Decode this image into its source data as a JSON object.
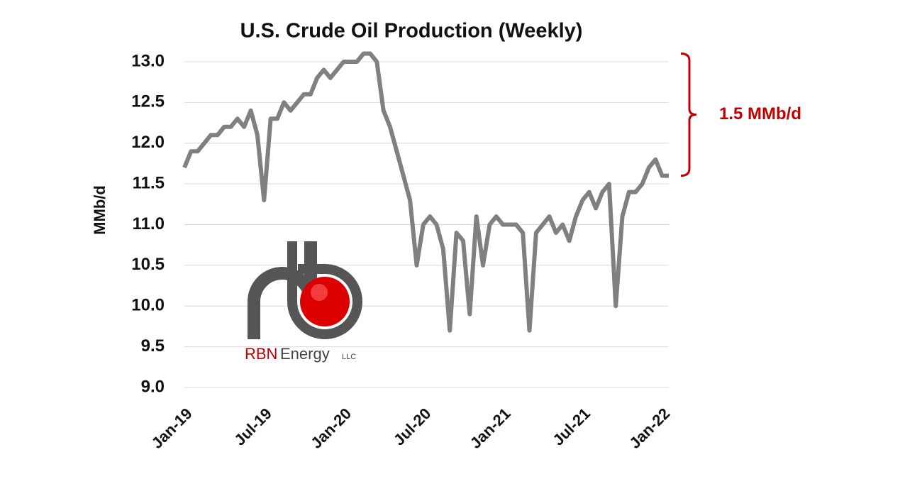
{
  "chart_data": {
    "type": "line",
    "title": "U.S. Crude Oil Production (Weekly)",
    "y_label": "MMb/d",
    "categories": [
      "Jan-19",
      null,
      null,
      null,
      null,
      null,
      null,
      null,
      null,
      null,
      null,
      null,
      "Jul-19",
      null,
      null,
      null,
      null,
      null,
      null,
      null,
      null,
      null,
      null,
      null,
      "Jan-20",
      null,
      null,
      null,
      null,
      null,
      null,
      null,
      null,
      null,
      null,
      null,
      "Jul-20",
      null,
      null,
      null,
      null,
      null,
      null,
      null,
      null,
      null,
      null,
      null,
      "Jan-21",
      null,
      null,
      null,
      null,
      null,
      null,
      null,
      null,
      null,
      null,
      null,
      "Jul-21",
      null,
      null,
      null,
      null,
      null,
      null,
      null,
      null,
      null,
      null,
      null,
      "Jan-22",
      null
    ],
    "series": [
      {
        "name": "U.S. Crude Oil Production",
        "color": "#808080",
        "values": [
          11.7,
          11.9,
          11.9,
          12.0,
          12.1,
          12.1,
          12.2,
          12.2,
          12.3,
          12.2,
          12.4,
          12.1,
          11.3,
          12.3,
          12.3,
          12.5,
          12.4,
          12.5,
          12.6,
          12.6,
          12.8,
          12.9,
          12.8,
          12.9,
          13.0,
          13.0,
          13.0,
          13.1,
          13.1,
          13.0,
          12.4,
          12.2,
          11.9,
          11.6,
          11.3,
          10.5,
          11.0,
          11.1,
          11.0,
          10.7,
          9.7,
          10.9,
          10.8,
          9.9,
          11.1,
          10.5,
          11.0,
          11.1,
          11.0,
          11.0,
          11.0,
          10.9,
          9.7,
          10.9,
          11.0,
          11.1,
          10.9,
          11.0,
          10.8,
          11.1,
          11.3,
          11.4,
          11.2,
          11.4,
          11.5,
          10.0,
          11.1,
          11.4,
          11.4,
          11.5,
          11.7,
          11.8,
          11.6,
          11.6
        ]
      }
    ],
    "ylim": [
      9,
      13.2
    ],
    "yticks": [
      {
        "value": 9,
        "label": "9.0"
      },
      9.5,
      {
        "value": 10,
        "label": "10.0"
      },
      10.5,
      {
        "value": 11,
        "label": "11.0"
      },
      11.5,
      {
        "value": 12,
        "label": "12.0"
      },
      12.5,
      {
        "value": 13,
        "label": "13.0"
      }
    ],
    "grid": true,
    "annotation": {
      "text": "1.5 MMb/d",
      "from": 11.6,
      "to": 13.1,
      "color": "#c00000"
    }
  },
  "logo": {
    "brand": "RBN",
    "name": "Energy",
    "suffix": "LLC"
  }
}
